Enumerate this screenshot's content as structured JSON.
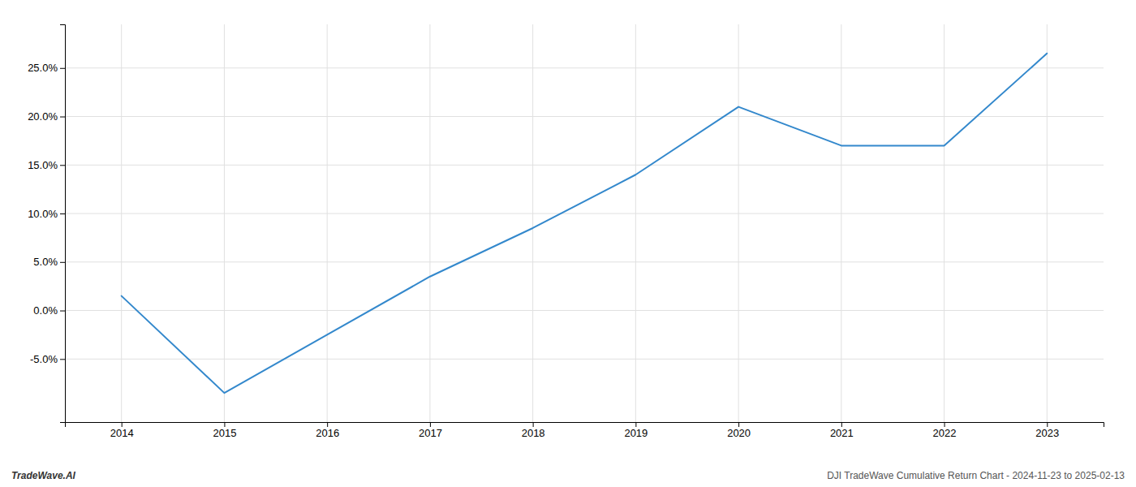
{
  "chart_data": {
    "type": "line",
    "x": [
      2014,
      2015,
      2016,
      2017,
      2018,
      2019,
      2020,
      2021,
      2022,
      2023
    ],
    "values": [
      0.015,
      -0.085,
      -0.025,
      0.035,
      0.085,
      0.14,
      0.21,
      0.17,
      0.17,
      0.265
    ],
    "color": "#3388cc",
    "xlim": [
      2013.45,
      2023.55
    ],
    "xticks": [
      2014,
      2015,
      2016,
      2017,
      2018,
      2019,
      2020,
      2021,
      2022,
      2023
    ],
    "ylim": [
      -0.115,
      0.295
    ],
    "yticks": [
      {
        "value": -0.05,
        "label": "-5.0%"
      },
      {
        "value": 0.0,
        "label": "0.0%"
      },
      {
        "value": 0.05,
        "label": "5.0%"
      },
      {
        "value": 0.1,
        "label": "10.0%"
      },
      {
        "value": 0.15,
        "label": "15.0%"
      },
      {
        "value": 0.2,
        "label": "20.0%"
      },
      {
        "value": 0.25,
        "label": "25.0%"
      }
    ],
    "grid": true,
    "annotations": [
      "TradeWave.AI",
      "DJI TradeWave Cumulative Return Chart - 2024-11-23 to 2025-02-13"
    ]
  }
}
